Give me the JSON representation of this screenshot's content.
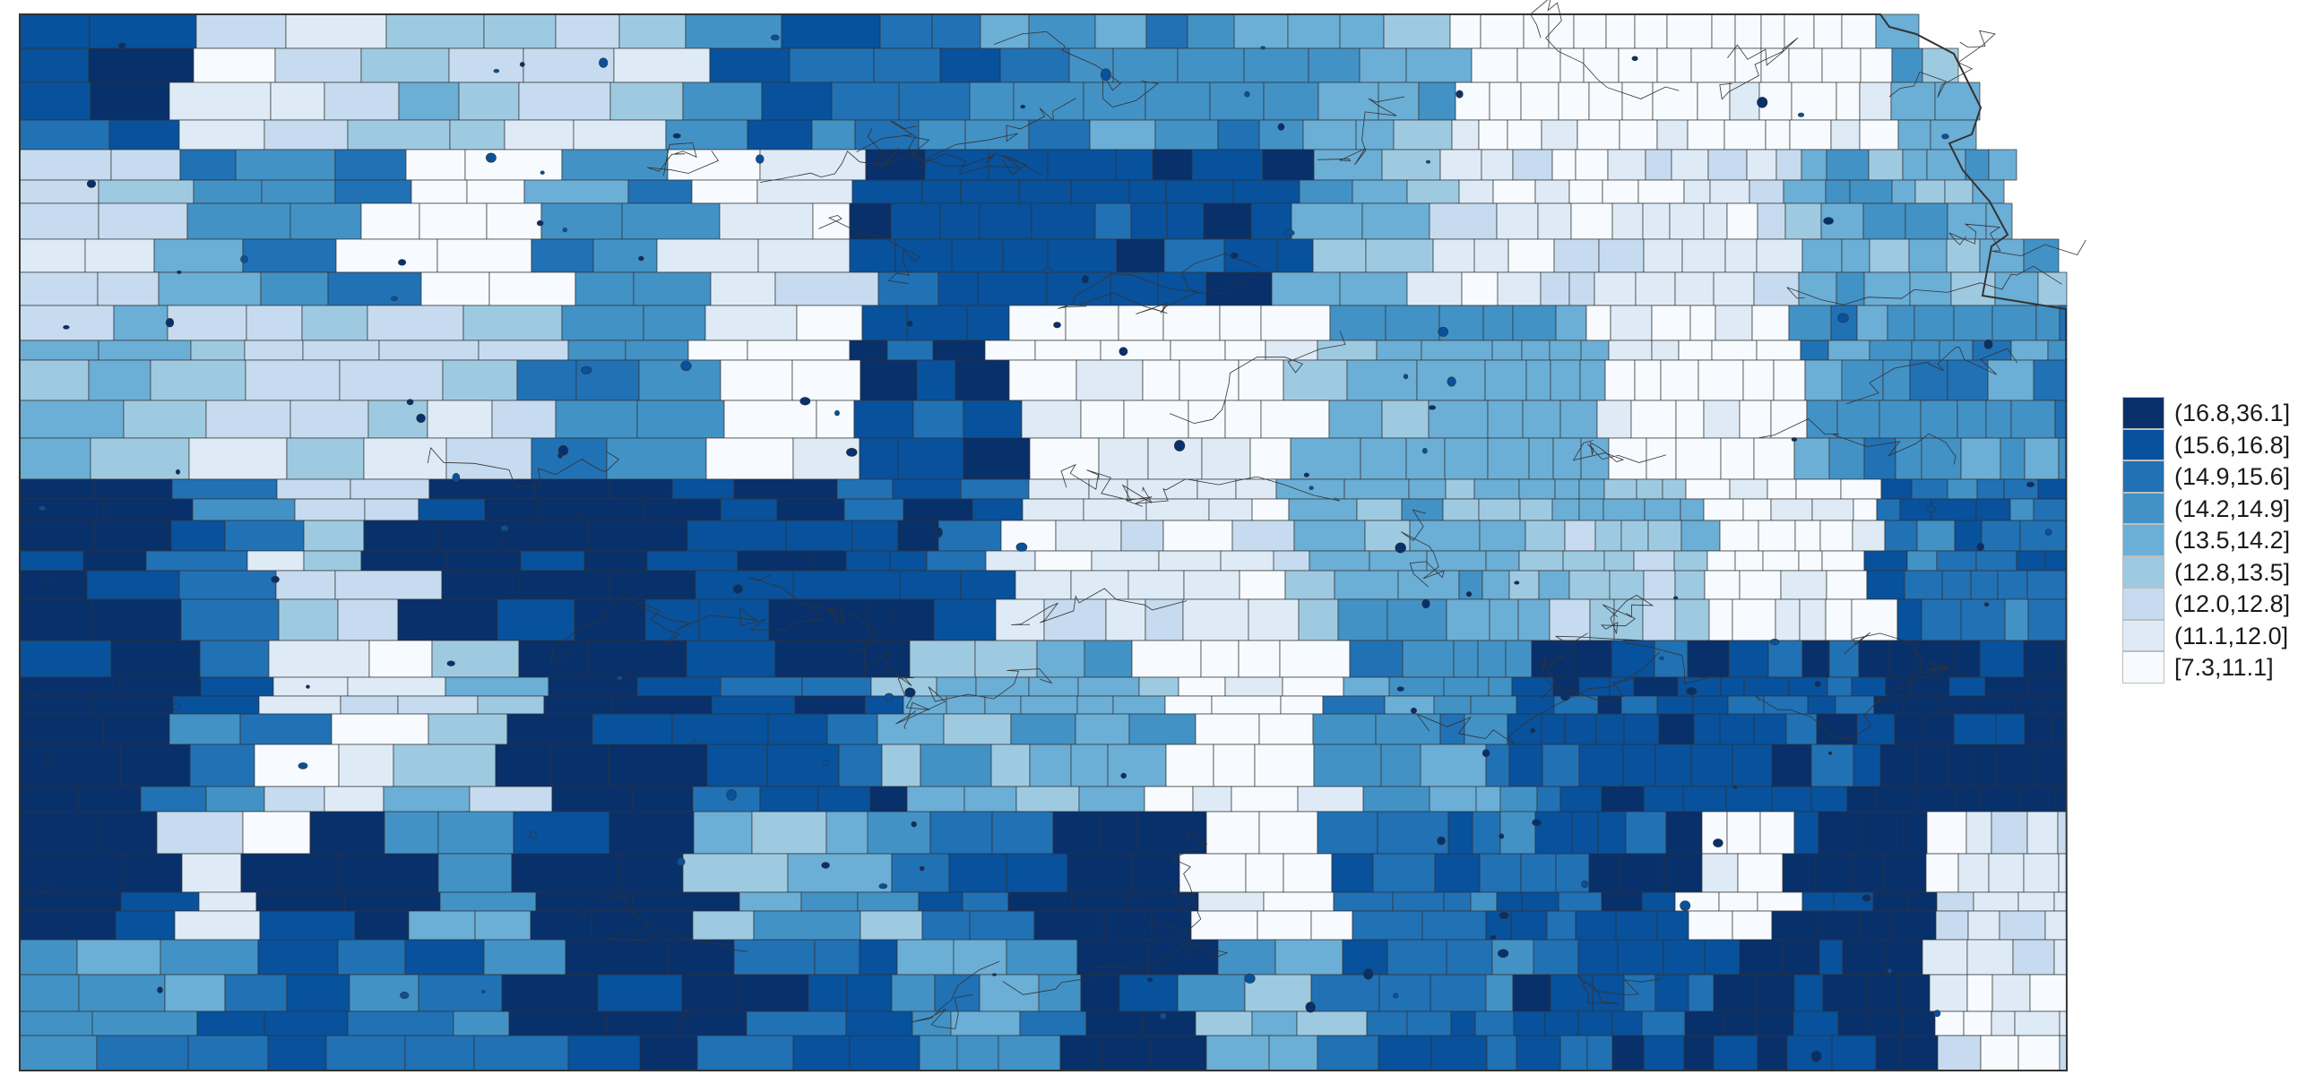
{
  "legend": {
    "items": [
      {
        "label": "(16.8,36.1]",
        "color": "#08306b"
      },
      {
        "label": "(15.6,16.8]",
        "color": "#08519c"
      },
      {
        "label": "(14.9,15.6]",
        "color": "#2171b5"
      },
      {
        "label": "(14.2,14.9]",
        "color": "#4292c6"
      },
      {
        "label": "(13.5,14.2]",
        "color": "#6baed6"
      },
      {
        "label": "(12.8,13.5]",
        "color": "#9ecae1"
      },
      {
        "label": "(12.0,12.8]",
        "color": "#c6dbef"
      },
      {
        "label": "(11.1,12.0]",
        "color": "#deebf7"
      },
      {
        "label": "[7.3,11.1]",
        "color": "#f7fbff"
      }
    ]
  },
  "map": {
    "region": "Kansas",
    "unit_type": "census tracts / block groups",
    "border_color": "#333333"
  }
}
